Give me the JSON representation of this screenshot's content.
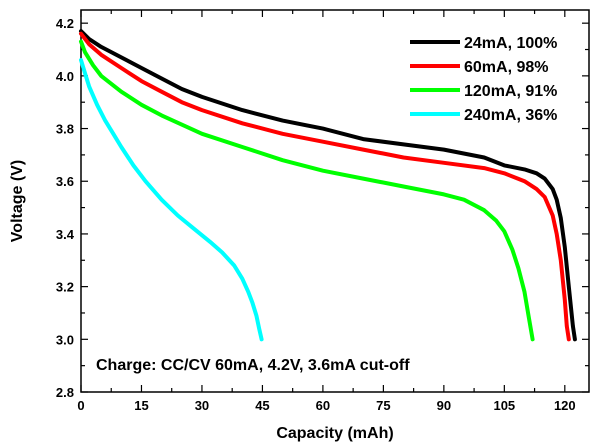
{
  "chart_data": {
    "type": "line",
    "xlabel": "Capacity (mAh)",
    "ylabel": "Voltage (V)",
    "xlim": [
      0,
      126
    ],
    "ylim": [
      2.8,
      4.25
    ],
    "xticks": [
      0,
      15,
      30,
      45,
      60,
      75,
      90,
      105,
      120
    ],
    "yticks": [
      2.8,
      3.0,
      3.2,
      3.4,
      3.6,
      3.8,
      4.0,
      4.2
    ],
    "xtick_labels": [
      "0",
      "15",
      "30",
      "45",
      "60",
      "75",
      "90",
      "105",
      "120"
    ],
    "ytick_labels": [
      "2.8",
      "3.0",
      "3.2",
      "3.4",
      "3.6",
      "3.8",
      "4.0",
      "4.2"
    ],
    "grid": false,
    "legend_position": "top-right",
    "annotation": "Charge: CC/CV 60mA, 4.2V, 3.6mA cut-off",
    "series": [
      {
        "name": "24mA, 100%",
        "color": "#000000",
        "x": [
          0,
          2,
          5,
          10,
          15,
          20,
          25,
          30,
          40,
          50,
          60,
          70,
          80,
          90,
          100,
          105,
          110,
          113,
          115,
          117,
          118,
          119,
          120,
          121,
          122,
          122.5
        ],
        "y": [
          4.17,
          4.14,
          4.11,
          4.07,
          4.03,
          3.99,
          3.95,
          3.92,
          3.87,
          3.83,
          3.8,
          3.76,
          3.74,
          3.72,
          3.69,
          3.66,
          3.645,
          3.63,
          3.61,
          3.57,
          3.53,
          3.46,
          3.35,
          3.2,
          3.05,
          3.0
        ]
      },
      {
        "name": "60mA, 98%",
        "color": "#ff0000",
        "x": [
          0,
          2,
          5,
          10,
          15,
          20,
          25,
          30,
          40,
          50,
          60,
          70,
          80,
          90,
          100,
          105,
          110,
          113,
          115,
          117,
          118,
          119,
          120,
          120.5,
          121
        ],
        "y": [
          4.16,
          4.12,
          4.08,
          4.03,
          3.98,
          3.94,
          3.9,
          3.87,
          3.82,
          3.78,
          3.75,
          3.72,
          3.69,
          3.67,
          3.65,
          3.63,
          3.6,
          3.57,
          3.54,
          3.47,
          3.4,
          3.3,
          3.15,
          3.05,
          3.0
        ]
      },
      {
        "name": "120mA, 91%",
        "color": "#00ff00",
        "x": [
          0,
          1,
          3,
          5,
          10,
          15,
          20,
          30,
          40,
          50,
          60,
          70,
          80,
          90,
          95,
          100,
          103,
          105,
          107,
          108.5,
          110,
          111,
          112
        ],
        "y": [
          4.13,
          4.09,
          4.04,
          4.0,
          3.94,
          3.89,
          3.85,
          3.78,
          3.73,
          3.68,
          3.64,
          3.61,
          3.58,
          3.55,
          3.53,
          3.49,
          3.45,
          3.41,
          3.34,
          3.27,
          3.18,
          3.09,
          3.0
        ]
      },
      {
        "name": "240mA, 36%",
        "color": "#00ffff",
        "x": [
          0,
          1,
          2,
          4,
          6,
          8,
          10,
          13,
          16,
          20,
          24,
          28,
          32,
          35,
          38,
          40,
          41.5,
          42.5,
          43.5,
          44.2,
          44.8
        ],
        "y": [
          4.06,
          4.01,
          3.96,
          3.89,
          3.83,
          3.78,
          3.73,
          3.66,
          3.6,
          3.53,
          3.47,
          3.42,
          3.37,
          3.33,
          3.28,
          3.23,
          3.18,
          3.14,
          3.09,
          3.04,
          3.0
        ]
      }
    ]
  }
}
